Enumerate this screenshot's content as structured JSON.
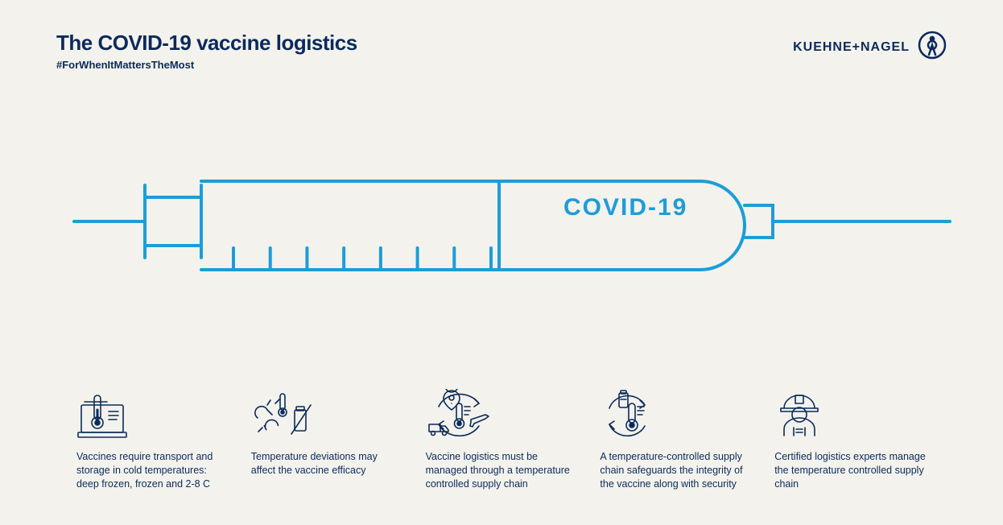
{
  "colors": {
    "background": "#f3f2ed",
    "dark_navy": "#0b2a5b",
    "bright_blue": "#1c9dd8",
    "stroke_width_syringe": 4,
    "stroke_width_icons": 1.6
  },
  "header": {
    "title": "The COVID-19 vaccine logistics",
    "title_fontsize": 26,
    "subtitle": "#ForWhenItMattersTheMost",
    "subtitle_fontsize": 13,
    "brand_text": "KUEHNE+NAGEL",
    "brand_fontsize": 16
  },
  "syringe": {
    "label": "COVID-19",
    "label_fontsize": 30,
    "tick_count": 8
  },
  "features": [
    {
      "icon": "cold-storage-icon",
      "text": "Vaccines require transport and storage in cold temperatures: deep frozen, frozen and 2-8 C"
    },
    {
      "icon": "temp-deviation-icon",
      "text": "Temperature deviations may affect the vaccine efficacy"
    },
    {
      "icon": "logistics-chain-icon",
      "text": "Vaccine logistics must be managed through a temperature controlled supply chain"
    },
    {
      "icon": "safeguard-icon",
      "text": "A temperature-controlled supply chain safeguards the integrity of the vaccine along with security"
    },
    {
      "icon": "expert-icon",
      "text": "Certified logistics experts manage the temperature controlled supply chain"
    }
  ],
  "feature_text_fontsize": 12.5
}
